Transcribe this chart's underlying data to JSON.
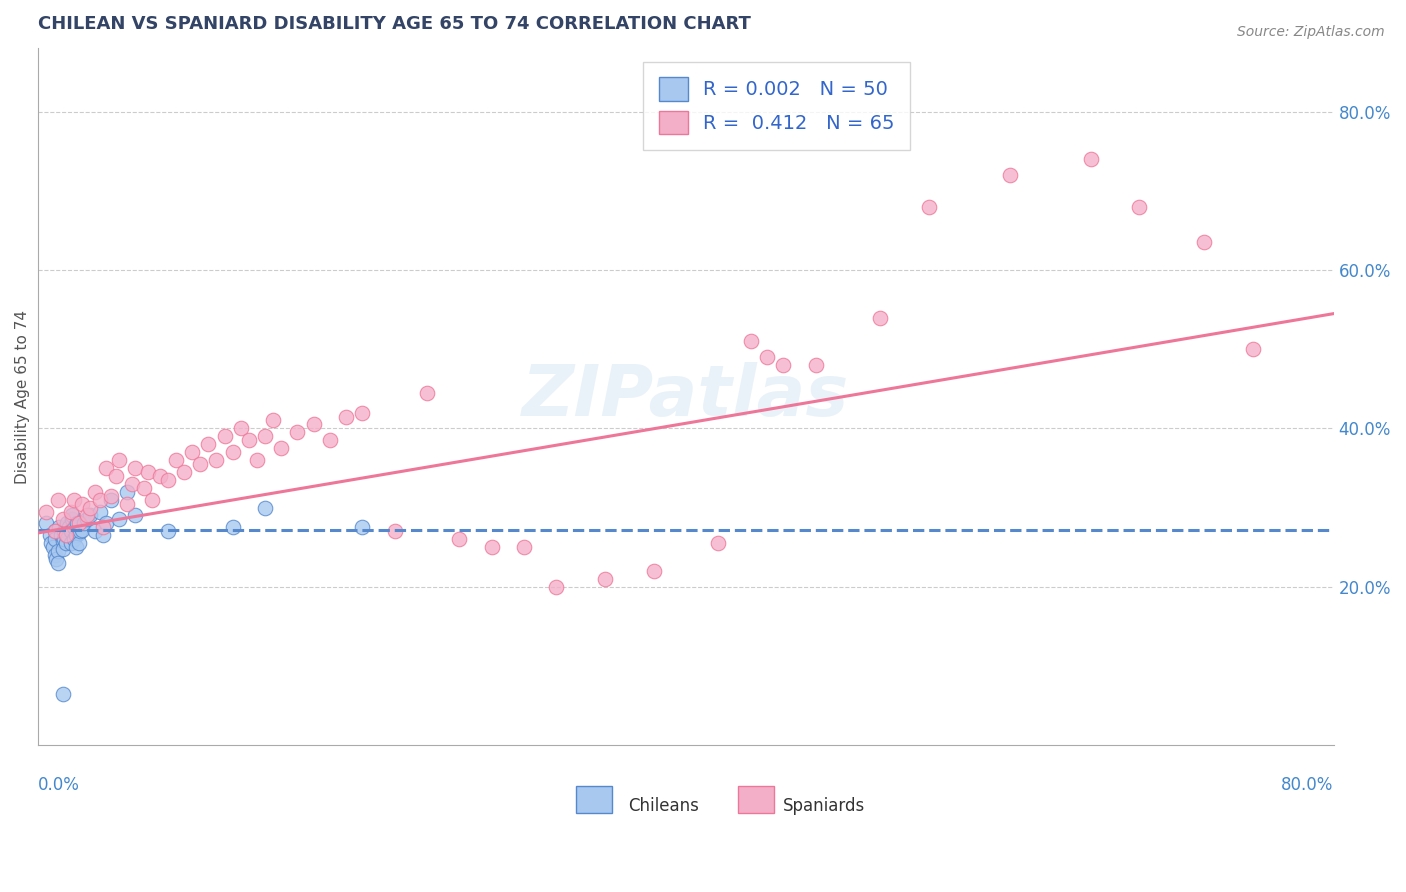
{
  "title": "CHILEAN VS SPANIARD DISABILITY AGE 65 TO 74 CORRELATION CHART",
  "source_text": "Source: ZipAtlas.com",
  "ylabel": "Disability Age 65 to 74",
  "y_tick_labels": [
    "20.0%",
    "40.0%",
    "60.0%",
    "80.0%"
  ],
  "y_tick_positions": [
    0.2,
    0.4,
    0.6,
    0.8
  ],
  "xmin": 0.0,
  "xmax": 0.8,
  "ymin": 0.0,
  "ymax": 0.88,
  "R_chilean": 0.002,
  "N_chilean": 50,
  "R_spaniard": 0.412,
  "N_spaniard": 65,
  "color_chilean": "#a8c8f0",
  "color_spaniard": "#f4afc8",
  "color_chilean_line": "#5588cc",
  "color_spaniard_line": "#ee7799",
  "legend_label_chilean": "Chileans",
  "legend_label_spaniard": "Spaniards",
  "watermark": "ZIPatlas",
  "chilean_line_y_at_x0": 0.272,
  "chilean_line_y_at_x80": 0.272,
  "spaniard_line_y_at_x0": 0.268,
  "spaniard_line_y_at_x80": 0.545,
  "chilean_x": [
    0.005,
    0.007,
    0.008,
    0.009,
    0.01,
    0.01,
    0.01,
    0.011,
    0.012,
    0.012,
    0.013,
    0.014,
    0.015,
    0.015,
    0.016,
    0.016,
    0.017,
    0.017,
    0.018,
    0.018,
    0.019,
    0.02,
    0.02,
    0.021,
    0.021,
    0.022,
    0.022,
    0.023,
    0.023,
    0.024,
    0.025,
    0.025,
    0.026,
    0.027,
    0.028,
    0.03,
    0.032,
    0.035,
    0.038,
    0.04,
    0.042,
    0.045,
    0.05,
    0.055,
    0.06,
    0.08,
    0.12,
    0.14,
    0.2,
    0.015
  ],
  "chilean_y": [
    0.28,
    0.265,
    0.255,
    0.25,
    0.27,
    0.26,
    0.24,
    0.235,
    0.245,
    0.23,
    0.275,
    0.265,
    0.258,
    0.248,
    0.27,
    0.26,
    0.275,
    0.255,
    0.28,
    0.265,
    0.275,
    0.27,
    0.255,
    0.285,
    0.29,
    0.275,
    0.26,
    0.265,
    0.25,
    0.28,
    0.268,
    0.255,
    0.27,
    0.272,
    0.28,
    0.285,
    0.29,
    0.27,
    0.295,
    0.265,
    0.28,
    0.31,
    0.285,
    0.32,
    0.29,
    0.27,
    0.275,
    0.3,
    0.275,
    0.065
  ],
  "spaniard_x": [
    0.005,
    0.01,
    0.012,
    0.015,
    0.017,
    0.02,
    0.022,
    0.025,
    0.027,
    0.03,
    0.032,
    0.035,
    0.038,
    0.04,
    0.042,
    0.045,
    0.048,
    0.05,
    0.055,
    0.058,
    0.06,
    0.065,
    0.068,
    0.07,
    0.075,
    0.08,
    0.085,
    0.09,
    0.095,
    0.1,
    0.105,
    0.11,
    0.115,
    0.12,
    0.125,
    0.13,
    0.135,
    0.14,
    0.145,
    0.15,
    0.16,
    0.17,
    0.18,
    0.19,
    0.2,
    0.22,
    0.24,
    0.26,
    0.28,
    0.3,
    0.32,
    0.35,
    0.38,
    0.42,
    0.45,
    0.48,
    0.52,
    0.55,
    0.6,
    0.65,
    0.68,
    0.72,
    0.75,
    0.44,
    0.46
  ],
  "spaniard_y": [
    0.295,
    0.27,
    0.31,
    0.285,
    0.265,
    0.295,
    0.31,
    0.28,
    0.305,
    0.29,
    0.3,
    0.32,
    0.31,
    0.275,
    0.35,
    0.315,
    0.34,
    0.36,
    0.305,
    0.33,
    0.35,
    0.325,
    0.345,
    0.31,
    0.34,
    0.335,
    0.36,
    0.345,
    0.37,
    0.355,
    0.38,
    0.36,
    0.39,
    0.37,
    0.4,
    0.385,
    0.36,
    0.39,
    0.41,
    0.375,
    0.395,
    0.405,
    0.385,
    0.415,
    0.42,
    0.27,
    0.445,
    0.26,
    0.25,
    0.25,
    0.2,
    0.21,
    0.22,
    0.255,
    0.49,
    0.48,
    0.54,
    0.68,
    0.72,
    0.74,
    0.68,
    0.635,
    0.5,
    0.51,
    0.48
  ]
}
